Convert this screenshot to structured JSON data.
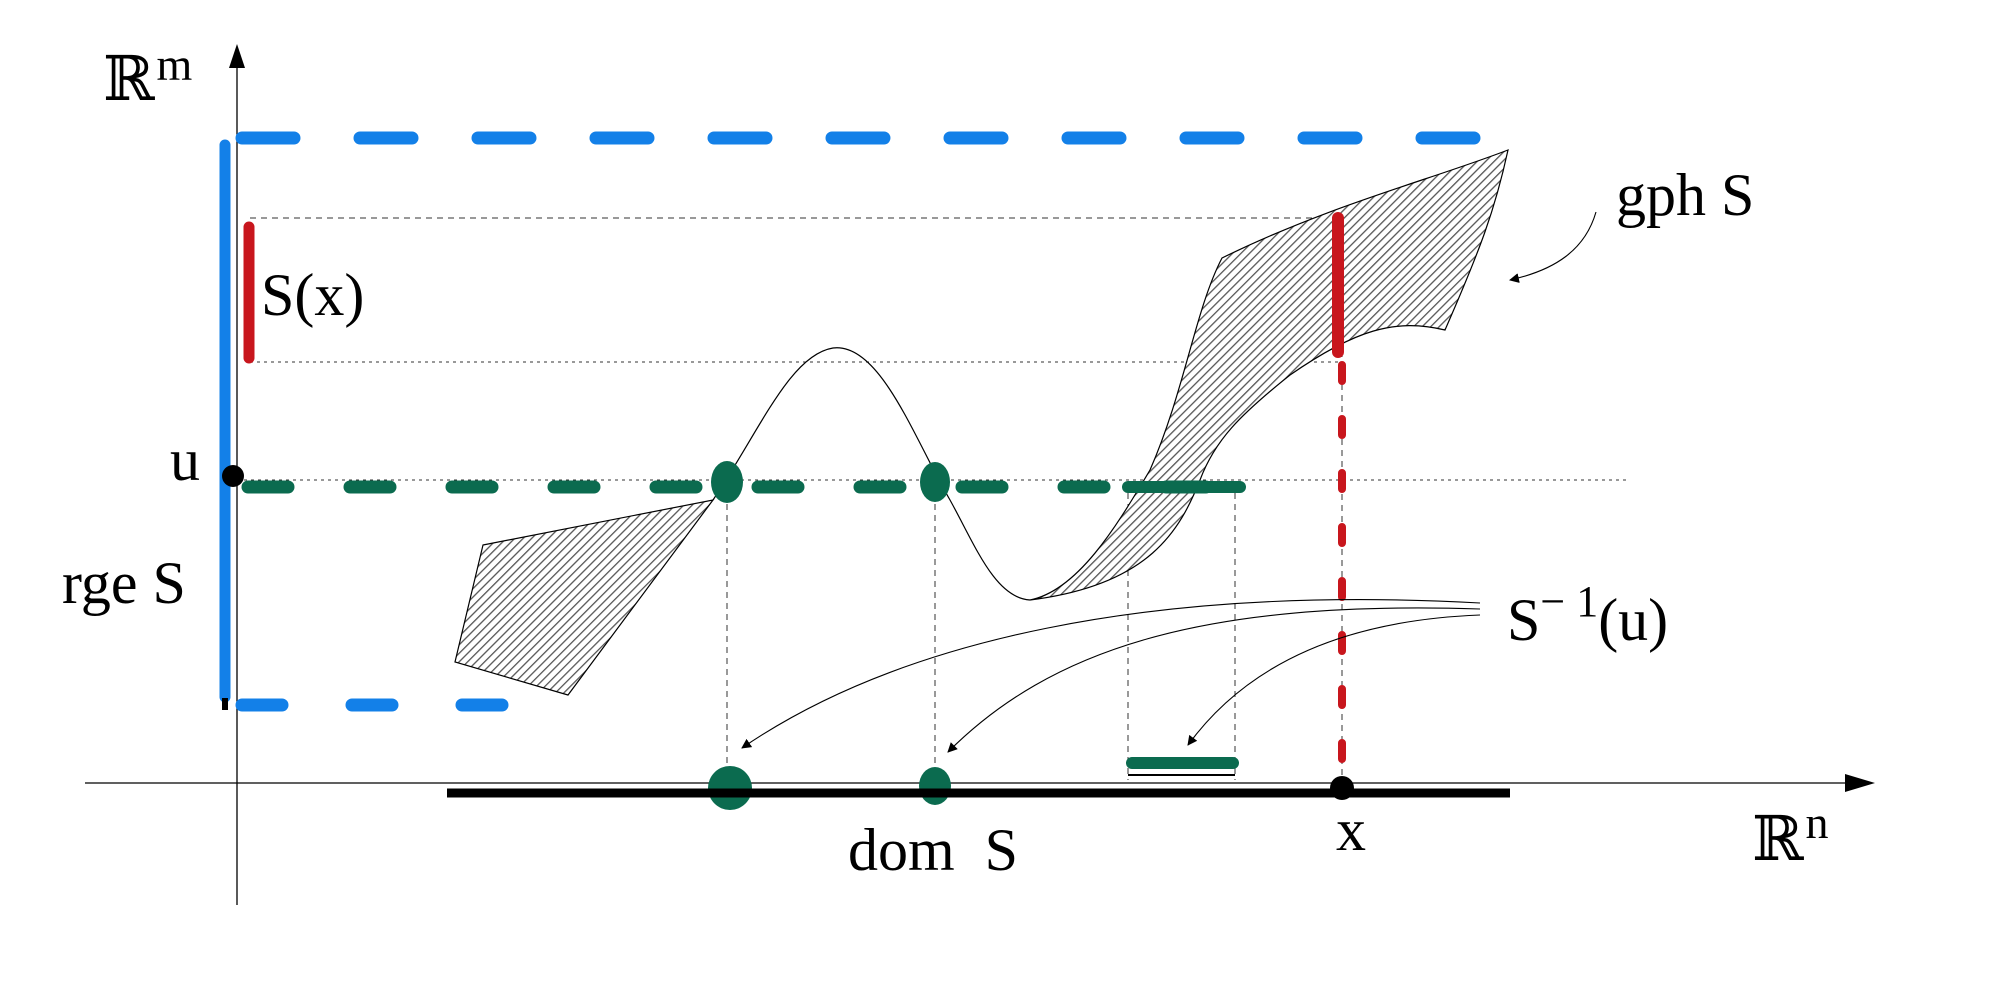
{
  "labels": {
    "y_axis": "ℝ",
    "y_axis_sup": "m",
    "x_axis": "ℝ",
    "x_axis_sup": "n",
    "graph": "gph S",
    "range": "rge S",
    "image_at_x": "S(x)",
    "u": "u",
    "x": "x",
    "domain": "dom  S",
    "inverse_main": "S",
    "inverse_sup": "− 1",
    "inverse_arg": "(u)"
  },
  "colors": {
    "range": "#1380e8",
    "image": "#c8161d",
    "inverse": "#0b6b4f",
    "axis": "#000000",
    "hatch": "#555555"
  }
}
